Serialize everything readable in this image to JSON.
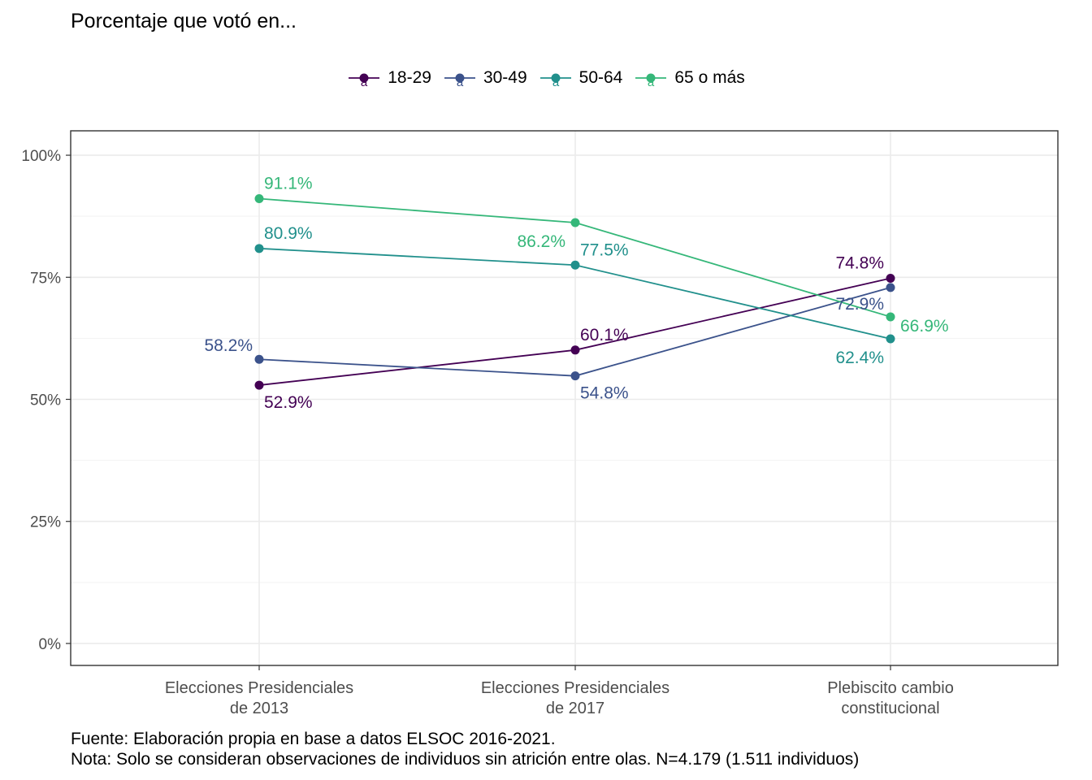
{
  "title": "Porcentaje que votó en...",
  "caption": {
    "line1": "Fuente: Elaboración propia en base a datos ELSOC 2016-2021.",
    "line2": "Nota: Solo se consideran observaciones de individuos sin atrición entre olas. N=4.179 (1.511 individuos)"
  },
  "chart_data": {
    "type": "line",
    "categories": [
      [
        "Elecciones Presidenciales",
        "de 2013"
      ],
      [
        "Elecciones Presidenciales",
        "de 2017"
      ],
      [
        "Plebiscito cambio",
        "constitucional"
      ]
    ],
    "y_ticks": [
      "0%",
      "25%",
      "50%",
      "75%",
      "100%"
    ],
    "y_tick_values": [
      0,
      25,
      50,
      75,
      100
    ],
    "ylim": [
      -4.5,
      105
    ],
    "grid": true,
    "legend_position": "top",
    "legend_glyph": "a",
    "series": [
      {
        "name": "18-29",
        "color": "#440154",
        "values": [
          52.9,
          60.1,
          74.8
        ],
        "labels": [
          "52.9%",
          "60.1%",
          "74.8%"
        ]
      },
      {
        "name": "30-49",
        "color": "#3b528b",
        "values": [
          58.2,
          54.8,
          72.9
        ],
        "labels": [
          "58.2%",
          "54.8%",
          "72.9%"
        ]
      },
      {
        "name": "50-64",
        "color": "#21908c",
        "values": [
          80.9,
          77.5,
          62.4
        ],
        "labels": [
          "80.9%",
          "77.5%",
          "62.4%"
        ]
      },
      {
        "name": "65 o más",
        "color": "#35b779",
        "values": [
          91.1,
          86.2,
          66.9
        ],
        "labels": [
          "91.1%",
          "86.2%",
          "66.9%"
        ]
      }
    ]
  }
}
